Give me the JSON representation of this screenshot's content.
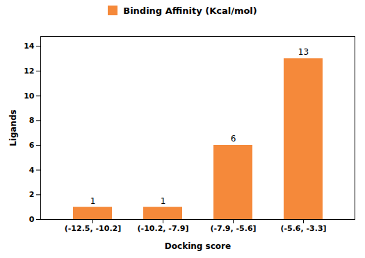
{
  "chart_data": {
    "type": "bar",
    "categories": [
      "(-12.5, -10.2]",
      "(-10.2, -7.9]",
      "(-7.9, -5.6]",
      "(-5.6, -3.3]"
    ],
    "series": [
      {
        "name": "Binding Affinity (Kcal/mol)",
        "color": "#F5893A",
        "values": [
          1,
          1,
          6,
          13
        ]
      }
    ],
    "xlabel": "Docking score",
    "ylabel": "Ligands",
    "ylim": [
      0,
      14.8
    ],
    "yticks": [
      0,
      2,
      4,
      6,
      8,
      10,
      12,
      14
    ],
    "data_labels": true,
    "legend": "top",
    "grid": false
  }
}
